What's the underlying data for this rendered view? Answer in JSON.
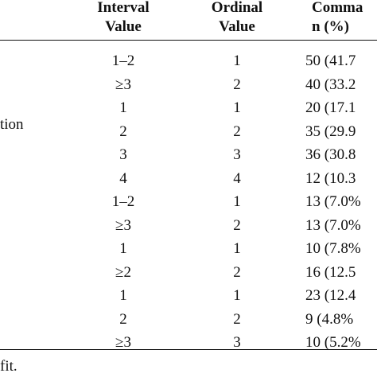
{
  "header": {
    "interval_line1": "Interval",
    "interval_line2": "Value",
    "ordinal_line1": "Ordinal",
    "ordinal_line2": "Value",
    "command_line1": "Comma",
    "command_line2": "n (%)"
  },
  "partial_label": "tion",
  "rows": [
    {
      "interval": "1–2",
      "ordinal": "1",
      "command": "50 (41.7"
    },
    {
      "interval": "≥3",
      "ordinal": "2",
      "command": "40 (33.2"
    },
    {
      "interval": "1",
      "ordinal": "1",
      "command": "20 (17.1"
    },
    {
      "interval": "2",
      "ordinal": "2",
      "command": "35 (29.9"
    },
    {
      "interval": "3",
      "ordinal": "3",
      "command": "36 (30.8"
    },
    {
      "interval": "4",
      "ordinal": "4",
      "command": "12 (10.3"
    },
    {
      "interval": "1–2",
      "ordinal": "1",
      "command": "13 (7.0%"
    },
    {
      "interval": "≥3",
      "ordinal": "2",
      "command": "13 (7.0%"
    },
    {
      "interval": "1",
      "ordinal": "1",
      "command": "10 (7.8%"
    },
    {
      "interval": "≥2",
      "ordinal": "2",
      "command": "16 (12.5"
    },
    {
      "interval": "1",
      "ordinal": "1",
      "command": "23 (12.4"
    },
    {
      "interval": "2",
      "ordinal": "2",
      "command": "9 (4.8%"
    },
    {
      "interval": "≥3",
      "ordinal": "3",
      "command": "10 (5.2%"
    }
  ],
  "footnote": "fit."
}
